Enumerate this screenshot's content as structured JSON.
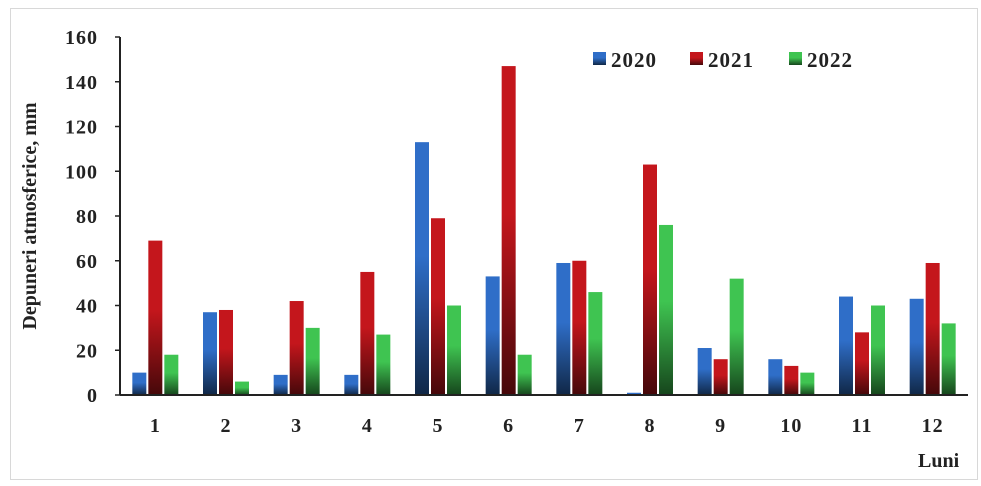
{
  "chart_data": {
    "type": "bar",
    "title": "",
    "xlabel": "Luni",
    "ylabel": "Depuneri atmosferice, mm",
    "ylim": [
      0,
      160
    ],
    "yticks": [
      0,
      20,
      40,
      60,
      80,
      100,
      120,
      140,
      160
    ],
    "categories": [
      "1",
      "2",
      "3",
      "4",
      "5",
      "6",
      "7",
      "8",
      "9",
      "10",
      "11",
      "12"
    ],
    "series": [
      {
        "name": "2020",
        "color": "#2f6ec8",
        "values": [
          10,
          37,
          9,
          9,
          113,
          53,
          59,
          1,
          21,
          16,
          44,
          43
        ]
      },
      {
        "name": "2021",
        "color": "#c4161c",
        "values": [
          69,
          38,
          42,
          55,
          79,
          147,
          60,
          103,
          16,
          13,
          28,
          59
        ]
      },
      {
        "name": "2022",
        "color": "#3fc451",
        "values": [
          18,
          6,
          30,
          27,
          40,
          18,
          46,
          76,
          52,
          10,
          40,
          32
        ]
      }
    ],
    "legend_position": "top-right",
    "grid": false
  }
}
